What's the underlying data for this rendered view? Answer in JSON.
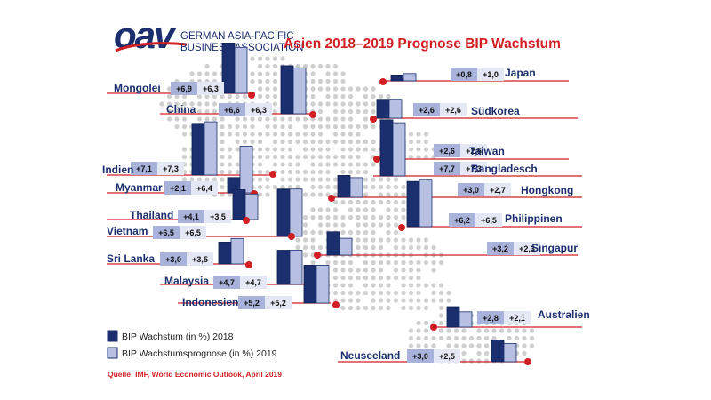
{
  "header": {
    "logo_text": "oav",
    "org_line1": "GERMAN ASIA-PACIFIC",
    "org_line2": "BUSINESS ASSOCIATION",
    "title": "Asien 2018–2019 Prognose BIP Wachstum"
  },
  "legend": {
    "item_2018": "BIP Wachstum (in %) 2018",
    "item_2019": "BIP Wachstumsprognose (in %) 2019"
  },
  "source": "Quelle: IMF, World Economic Outlook, April 2019",
  "colors": {
    "bar_2018": "#1b2f6e",
    "bar_2019": "#b7c0e3",
    "label_box_2018": "#a8b2da",
    "label_box_2019": "#e4e8f5",
    "country_text": "#1b2f6e",
    "title_red": "#d11f24",
    "leader_red": "#d11f24",
    "map_dots": "#cfcfcf"
  },
  "chart_data": {
    "type": "bar",
    "title": "Asien 2018–2019 Prognose BIP Wachstum",
    "series_names": [
      "BIP Wachstum (in %) 2018",
      "BIP Wachstumsprognose (in %) 2019"
    ],
    "countries": [
      {
        "name": "Mongolei",
        "v2018": 6.9,
        "v2019": 6.3,
        "label2018": "+6,9",
        "label2019": "+6,3"
      },
      {
        "name": "China",
        "v2018": 6.6,
        "v2019": 6.3,
        "label2018": "+6,6",
        "label2019": "+6,3"
      },
      {
        "name": "Japan",
        "v2018": 0.8,
        "v2019": 1.0,
        "label2018": "+0,8",
        "label2019": "+1,0"
      },
      {
        "name": "Südkorea",
        "v2018": 2.6,
        "v2019": 2.6,
        "label2018": "+2,6",
        "label2019": "+2,6"
      },
      {
        "name": "Taiwan",
        "v2018": 2.6,
        "v2019": 2.5,
        "label2018": "+2,6",
        "label2019": "+2,5"
      },
      {
        "name": "Bangladesch",
        "v2018": 7.7,
        "v2019": 7.3,
        "label2018": "+7,7",
        "label2019": "+7,3"
      },
      {
        "name": "Indien",
        "v2018": 7.1,
        "v2019": 7.3,
        "label2018": "+7,1",
        "label2019": "+7,3"
      },
      {
        "name": "Myanmar",
        "v2018": 2.1,
        "v2019": 6.4,
        "label2018": "+2,1",
        "label2019": "+6,4"
      },
      {
        "name": "Hongkong",
        "v2018": 3.0,
        "v2019": 2.7,
        "label2018": "+3,0",
        "label2019": "+2,7"
      },
      {
        "name": "Thailand",
        "v2018": 4.1,
        "v2019": 3.5,
        "label2018": "+4,1",
        "label2019": "+3,5"
      },
      {
        "name": "Philippinen",
        "v2018": 6.2,
        "v2019": 6.5,
        "label2018": "+6,2",
        "label2019": "+6,5"
      },
      {
        "name": "Vietnam",
        "v2018": 6.5,
        "v2019": 6.5,
        "label2018": "+6,5",
        "label2019": "+6,5"
      },
      {
        "name": "Singapur",
        "v2018": 3.2,
        "v2019": 2.3,
        "label2018": "+3,2",
        "label2019": "+2,3"
      },
      {
        "name": "Sri Lanka",
        "v2018": 3.0,
        "v2019": 3.5,
        "label2018": "+3,0",
        "label2019": "+3,5"
      },
      {
        "name": "Malaysia",
        "v2018": 4.7,
        "v2019": 4.7,
        "label2018": "+4,7",
        "label2019": "+4,7"
      },
      {
        "name": "Indonesien",
        "v2018": 5.2,
        "v2019": 5.2,
        "label2018": "+5,2",
        "label2019": "+5,2"
      },
      {
        "name": "Australien",
        "v2018": 2.8,
        "v2019": 2.1,
        "label2018": "+2,8",
        "label2019": "+2,1"
      },
      {
        "name": "Neuseeland",
        "v2018": 3.0,
        "v2019": 2.5,
        "label2018": "+3,0",
        "label2019": "+2,5"
      }
    ]
  }
}
